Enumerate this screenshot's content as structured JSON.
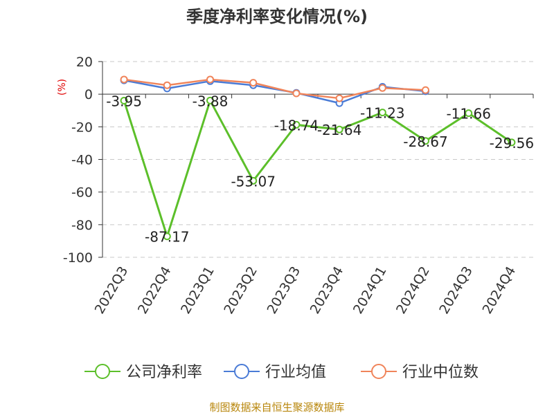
{
  "chart_data": {
    "type": "line",
    "title": "季度净利率变化情况(%)",
    "ylabel": "(%)",
    "xlabel": "",
    "ylim": [
      -100,
      20
    ],
    "yticks": [
      20,
      0,
      -20,
      -40,
      -60,
      -80,
      -100
    ],
    "categories": [
      "2022Q3",
      "2022Q4",
      "2023Q1",
      "2023Q2",
      "2023Q3",
      "2023Q4",
      "2024Q1",
      "2024Q2",
      "2024Q3",
      "2024Q4"
    ],
    "grid": true,
    "legend_position": "bottom",
    "series": [
      {
        "name": "公司净利率",
        "color": "#5cbf2a",
        "values": [
          -3.95,
          -87.17,
          -3.88,
          -53.07,
          -18.74,
          -21.64,
          -11.23,
          -28.67,
          -11.66,
          -29.56
        ],
        "labels": [
          "-3.95",
          "-87.17",
          "-3.88",
          "-53.07",
          "-18.74",
          "-21.64",
          "-11.23",
          "-28.67",
          "-11.66",
          "-29.56"
        ]
      },
      {
        "name": "行业均值",
        "color": "#4a7bd6",
        "values": [
          8.5,
          3.5,
          8.0,
          5.5,
          0.8,
          -5.5,
          4.5,
          1.8,
          null,
          null
        ]
      },
      {
        "name": "行业中位数",
        "color": "#f0845a",
        "values": [
          9.0,
          5.5,
          9.0,
          7.0,
          0.5,
          -2.5,
          3.8,
          2.5,
          null,
          null
        ]
      }
    ]
  },
  "source": "制图数据来自恒生聚源数据库"
}
